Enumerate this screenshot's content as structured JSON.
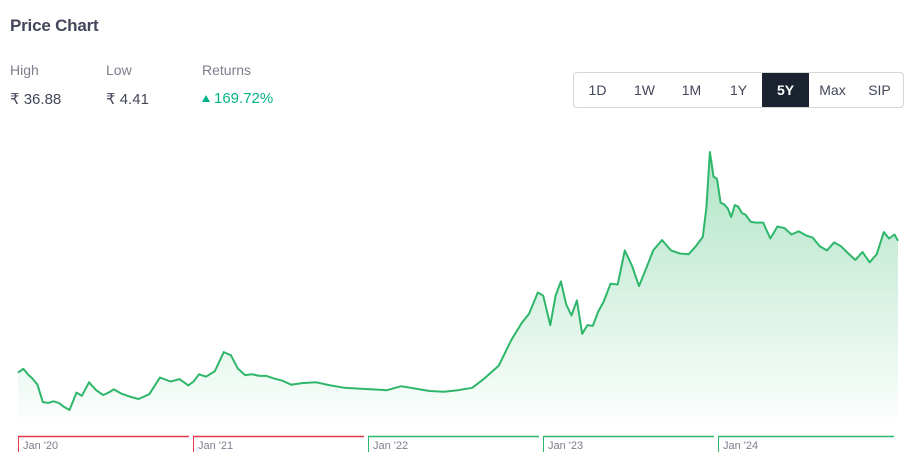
{
  "header": {
    "title": "Price Chart"
  },
  "stats": {
    "high": {
      "label": "High",
      "value": "₹ 36.88"
    },
    "low": {
      "label": "Low",
      "value": "₹ 4.41"
    },
    "returns": {
      "label": "Returns",
      "value": "169.72%",
      "direction": "up",
      "color": "#00b386"
    }
  },
  "range_buttons": [
    {
      "label": "1D",
      "active": false
    },
    {
      "label": "1W",
      "active": false
    },
    {
      "label": "1M",
      "active": false
    },
    {
      "label": "1Y",
      "active": false
    },
    {
      "label": "5Y",
      "active": true
    },
    {
      "label": "Max",
      "active": false
    },
    {
      "label": "SIP",
      "active": false
    }
  ],
  "colors": {
    "line": "#2eb76a",
    "negative": "#e5394b",
    "positive": "#2eb76a"
  },
  "chart_data": {
    "type": "area",
    "title": "",
    "xlabel": "",
    "ylabel": "",
    "ylim": [
      4.41,
      36.88
    ],
    "grid": false,
    "year_labels": [
      {
        "label": "Jan '20",
        "trend": "negative"
      },
      {
        "label": "Jan '21",
        "trend": "negative"
      },
      {
        "label": "Jan '22",
        "trend": "positive"
      },
      {
        "label": "Jan '23",
        "trend": "positive"
      },
      {
        "label": "Jan '24",
        "trend": "positive"
      }
    ],
    "x_years": [
      2019.92,
      2019.95,
      2019.98,
      2020.0,
      2020.03,
      2020.06,
      2020.09,
      2020.12,
      2020.15,
      2020.18,
      2020.21,
      2020.25,
      2020.28,
      2020.32,
      2020.36,
      2020.38,
      2020.4,
      2020.43,
      2020.46,
      2020.5,
      2020.55,
      2020.6,
      2020.66,
      2020.72,
      2020.78,
      2020.83,
      2020.88,
      2020.91,
      2020.94,
      2020.98,
      2021.03,
      2021.08,
      2021.12,
      2021.16,
      2021.2,
      2021.24,
      2021.28,
      2021.32,
      2021.36,
      2021.41,
      2021.46,
      2021.52,
      2021.6,
      2021.68,
      2021.76,
      2021.84,
      2021.92,
      2022.0,
      2022.08,
      2022.16,
      2022.24,
      2022.32,
      2022.4,
      2022.48,
      2022.55,
      2022.63,
      2022.7,
      2022.76,
      2022.8,
      2022.85,
      2022.88,
      2022.92,
      2022.95,
      2022.98,
      2023.01,
      2023.04,
      2023.07,
      2023.1,
      2023.13,
      2023.16,
      2023.19,
      2023.22,
      2023.26,
      2023.3,
      2023.34,
      2023.38,
      2023.42,
      2023.46,
      2023.5,
      2023.55,
      2023.6,
      2023.65,
      2023.7,
      2023.74,
      2023.78,
      2023.8,
      2023.82,
      2023.84,
      2023.86,
      2023.88,
      2023.9,
      2023.92,
      2023.94,
      2023.96,
      2023.98,
      2024.0,
      2024.02,
      2024.05,
      2024.08,
      2024.12,
      2024.16,
      2024.2,
      2024.24,
      2024.28,
      2024.32,
      2024.36,
      2024.4,
      2024.44,
      2024.48,
      2024.52,
      2024.56,
      2024.6,
      2024.64,
      2024.68,
      2024.72,
      2024.76,
      2024.8,
      2024.83,
      2024.86,
      2024.88
    ],
    "values": [
      9.1,
      9.6,
      8.8,
      8.4,
      7.6,
      5.4,
      5.3,
      5.5,
      5.3,
      4.8,
      4.41,
      6.6,
      6.2,
      7.9,
      6.9,
      6.6,
      6.3,
      6.6,
      7.0,
      6.5,
      6.1,
      5.8,
      6.4,
      8.5,
      8.0,
      8.3,
      7.5,
      8.0,
      8.9,
      8.6,
      9.3,
      11.7,
      11.3,
      9.6,
      8.8,
      8.9,
      8.7,
      8.7,
      8.4,
      8.1,
      7.6,
      7.8,
      7.9,
      7.5,
      7.2,
      7.1,
      7.0,
      6.9,
      7.4,
      7.1,
      6.8,
      6.7,
      6.9,
      7.2,
      8.4,
      10.0,
      13.2,
      15.4,
      16.5,
      19.2,
      18.8,
      15.1,
      18.8,
      20.6,
      17.7,
      16.3,
      18.2,
      14.0,
      15.1,
      15.0,
      16.8,
      18.0,
      20.3,
      20.2,
      24.5,
      22.6,
      20.0,
      22.2,
      24.5,
      25.8,
      24.5,
      24.1,
      24.0,
      25.0,
      26.2,
      29.9,
      36.88,
      33.8,
      33.5,
      30.5,
      30.3,
      29.8,
      28.7,
      30.2,
      30.0,
      29.2,
      29.0,
      28.1,
      28.0,
      28.0,
      26.0,
      27.5,
      27.3,
      26.5,
      26.9,
      26.4,
      26.1,
      25.0,
      24.5,
      25.5,
      25.0,
      24.1,
      23.3,
      24.3,
      23.0,
      24.0,
      26.8,
      26.0,
      26.5,
      25.7
    ]
  }
}
